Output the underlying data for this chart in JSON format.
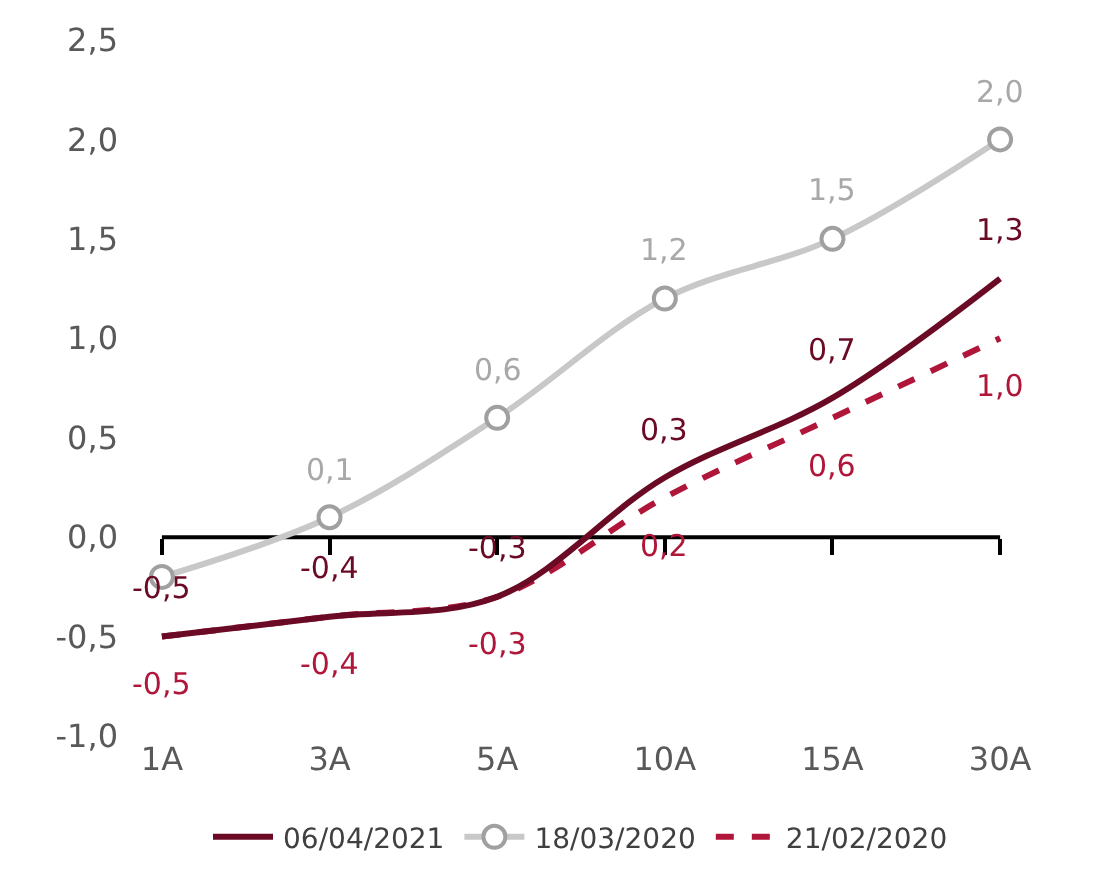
{
  "chart_data": {
    "type": "line",
    "categories": [
      "1A",
      "3A",
      "5A",
      "10A",
      "15A",
      "30A"
    ],
    "series": [
      {
        "name": "06/04/2021",
        "color": "#6b0a24",
        "values": [
          -0.5,
          -0.4,
          -0.3,
          0.3,
          0.7,
          1.3
        ],
        "value_labels": [
          "-0,5",
          "-0,4",
          "-0,3",
          "0,3",
          "0,7",
          "1,3"
        ],
        "marker": "none",
        "line_style": "solid"
      },
      {
        "name": "18/03/2020",
        "color": "#c8c8c8",
        "values": [
          -0.2,
          0.1,
          0.6,
          1.2,
          1.5,
          2.0
        ],
        "value_labels": [
          null,
          "0,1",
          "0,6",
          "1,2",
          "1,5",
          "2,0"
        ],
        "marker": "circle",
        "line_style": "solid"
      },
      {
        "name": "21/02/2020",
        "color": "#b0163a",
        "values": [
          -0.5,
          -0.4,
          -0.3,
          0.2,
          0.6,
          1.0
        ],
        "value_labels": [
          "-0,5",
          "-0,4",
          "-0,3",
          "0,2",
          "0,6",
          "1,0"
        ],
        "marker": "none",
        "line_style": "dashed"
      }
    ],
    "ylim": [
      -1.0,
      2.5
    ],
    "yticks": [
      {
        "value": -1.0,
        "label": "-1,0"
      },
      {
        "value": -0.5,
        "label": "-0,5"
      },
      {
        "value": 0.0,
        "label": "0,0"
      },
      {
        "value": 0.5,
        "label": "0,5"
      },
      {
        "value": 1.0,
        "label": "1,0"
      },
      {
        "value": 1.5,
        "label": "1,5"
      },
      {
        "value": 2.0,
        "label": "2,0"
      },
      {
        "value": 2.5,
        "label": "2,5"
      }
    ],
    "ref_lines": [
      {
        "axis": "y",
        "value": 0,
        "color": "#000000",
        "line_style": "solid"
      }
    ],
    "legend": "bottom"
  }
}
